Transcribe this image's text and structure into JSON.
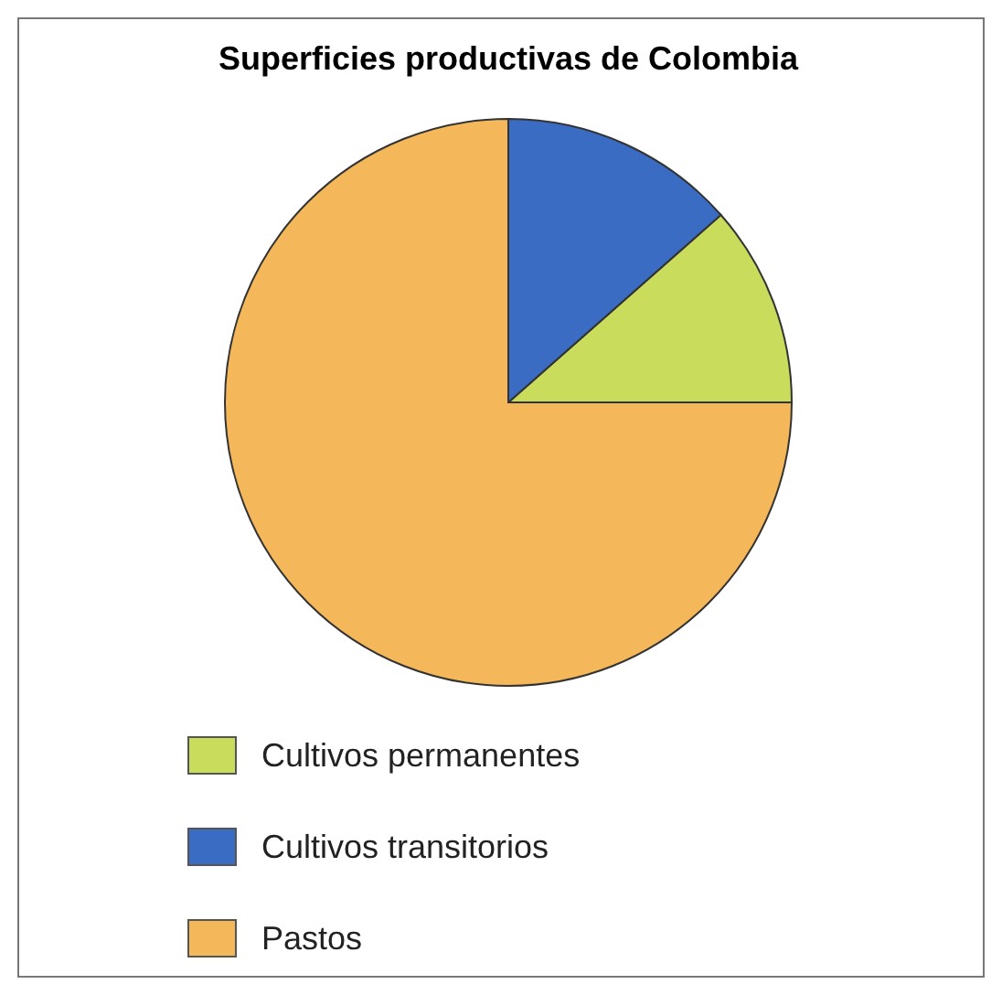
{
  "chart_data": {
    "type": "pie",
    "title": "Superficies productivas de Colombia",
    "categories": [
      "Cultivos permanentes",
      "Cultivos transitorios",
      "Pastos"
    ],
    "values": [
      11.5,
      13.5,
      75
    ],
    "colors": [
      "#c9dc5c",
      "#3b6cc4",
      "#f4b75a"
    ],
    "legend": "bottom"
  }
}
